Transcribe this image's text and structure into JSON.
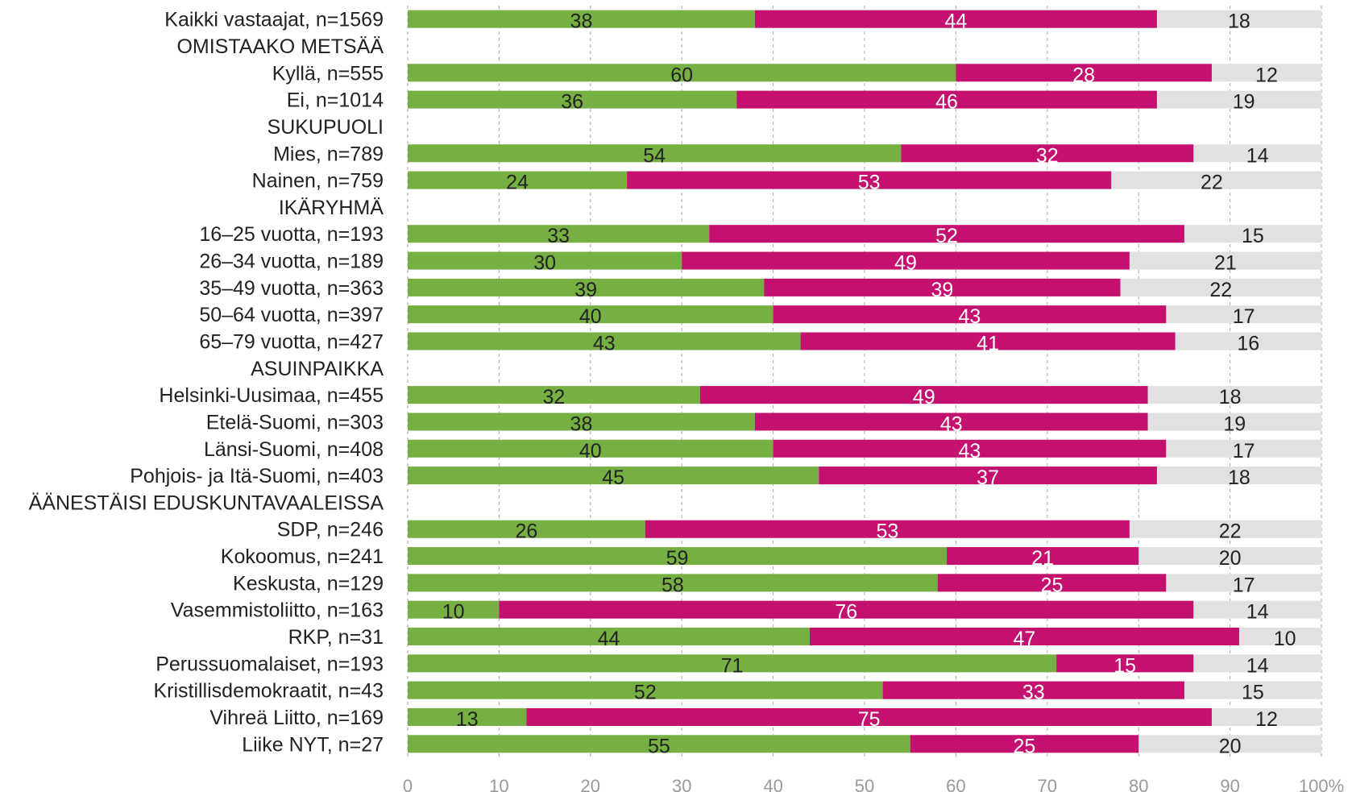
{
  "chart_data": {
    "type": "bar",
    "orientation": "horizontal",
    "stacked": true,
    "xlim": [
      0,
      100
    ],
    "x_ticks": [
      "0",
      "10",
      "20",
      "30",
      "40",
      "50",
      "60",
      "70",
      "80",
      "90",
      "100%"
    ],
    "grid": "vertical dashed",
    "colors": [
      "#76b043",
      "#c4106e",
      "#e1e1e1"
    ],
    "label_colors": [
      "#222222",
      "#ffffff",
      "#222222"
    ],
    "rows": [
      {
        "label": "Kaikki vastaajat, n=1569",
        "values": [
          38,
          44,
          18
        ]
      },
      {
        "label": "OMISTAAKO METSÄÄ",
        "header": true
      },
      {
        "label": "Kyllä, n=555",
        "values": [
          60,
          28,
          12
        ]
      },
      {
        "label": "Ei, n=1014",
        "values": [
          36,
          46,
          19
        ]
      },
      {
        "label": "SUKUPUOLI",
        "header": true
      },
      {
        "label": "Mies, n=789",
        "values": [
          54,
          32,
          14
        ]
      },
      {
        "label": "Nainen, n=759",
        "values": [
          24,
          53,
          22
        ]
      },
      {
        "label": "IKÄRYHMÄ",
        "header": true
      },
      {
        "label": "16–25 vuotta, n=193",
        "values": [
          33,
          52,
          15
        ]
      },
      {
        "label": "26–34 vuotta, n=189",
        "values": [
          30,
          49,
          21
        ]
      },
      {
        "label": "35–49 vuotta, n=363",
        "values": [
          39,
          39,
          22
        ]
      },
      {
        "label": "50–64 vuotta, n=397",
        "values": [
          40,
          43,
          17
        ]
      },
      {
        "label": "65–79 vuotta, n=427",
        "values": [
          43,
          41,
          16
        ]
      },
      {
        "label": "ASUINPAIKKA",
        "header": true
      },
      {
        "label": "Helsinki-Uusimaa, n=455",
        "values": [
          32,
          49,
          18
        ]
      },
      {
        "label": "Etelä-Suomi, n=303",
        "values": [
          38,
          43,
          19
        ]
      },
      {
        "label": "Länsi-Suomi, n=408",
        "values": [
          40,
          43,
          17
        ]
      },
      {
        "label": "Pohjois- ja Itä-Suomi, n=403",
        "values": [
          45,
          37,
          18
        ]
      },
      {
        "label": "ÄÄNESTÄISI EDUSKUNTAVAALEISSA",
        "header": true
      },
      {
        "label": "SDP, n=246",
        "values": [
          26,
          53,
          22
        ]
      },
      {
        "label": "Kokoomus, n=241",
        "values": [
          59,
          21,
          20
        ]
      },
      {
        "label": "Keskusta, n=129",
        "values": [
          58,
          25,
          17
        ]
      },
      {
        "label": "Vasemmistoliitto, n=163",
        "values": [
          10,
          76,
          14
        ]
      },
      {
        "label": "RKP, n=31",
        "values": [
          44,
          47,
          10
        ]
      },
      {
        "label": "Perussuomalaiset, n=193",
        "values": [
          71,
          15,
          14
        ]
      },
      {
        "label": "Kristillisdemokraatit, n=43",
        "values": [
          52,
          33,
          15
        ]
      },
      {
        "label": "Vihreä Liitto, n=169",
        "values": [
          13,
          75,
          12
        ]
      },
      {
        "label": "Liike NYT, n=27",
        "values": [
          55,
          25,
          20
        ]
      }
    ]
  }
}
